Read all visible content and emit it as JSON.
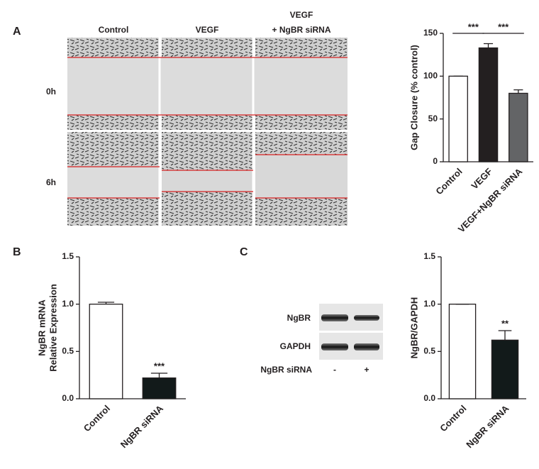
{
  "panels": {
    "a": {
      "label": "A",
      "columns": [
        "Control",
        "VEGF",
        "VEGF",
        "+ NgBR siRNA"
      ],
      "rows": [
        "0h",
        "6h"
      ]
    },
    "b": {
      "label": "B"
    },
    "c": {
      "label": "C",
      "blot_rows": [
        "NgBR",
        "GAPDH"
      ],
      "treatment": "NgBR siRNA",
      "lanes": [
        "-",
        "+"
      ]
    }
  },
  "chart_data": [
    {
      "type": "bar",
      "ylabel": "Gap Closure (% control)",
      "categories": [
        "Control",
        "VEGF",
        "VEGF+NgBR siRNA"
      ],
      "values": [
        100,
        133,
        80
      ],
      "errors": [
        0,
        5,
        4
      ],
      "colors": [
        "#ffffff",
        "#231f20",
        "#636466"
      ],
      "ylim": [
        0,
        150
      ],
      "yticks": [
        0,
        50,
        100,
        150
      ],
      "comparisons": [
        "***",
        "***"
      ]
    },
    {
      "type": "bar",
      "ylabel": [
        "NgBR mRNA",
        "Relative Expression"
      ],
      "categories": [
        "Control",
        "NgBR siRNA"
      ],
      "values": [
        1.0,
        0.22
      ],
      "errors": [
        0.02,
        0.05
      ],
      "colors": [
        "#ffffff",
        "#121a1a"
      ],
      "ylim": [
        0,
        1.5
      ],
      "yticks": [
        {
          "value": 0,
          "label": "0.0"
        },
        {
          "value": 0.5,
          "label": "0.5"
        },
        {
          "value": 1,
          "label": "1.0"
        },
        {
          "value": 1.5,
          "label": "1.5"
        }
      ],
      "annotation": "***"
    },
    {
      "type": "bar",
      "ylabel": "NgBR/GAPDH",
      "categories": [
        "Control",
        "NgBR siRNA"
      ],
      "values": [
        1.0,
        0.62
      ],
      "errors": [
        0,
        0.1
      ],
      "colors": [
        "#ffffff",
        "#121a1a"
      ],
      "ylim": [
        0,
        1.5
      ],
      "yticks": [
        {
          "value": 0,
          "label": "0.0"
        },
        {
          "value": 0.5,
          "label": "0.5"
        },
        {
          "value": 1,
          "label": "1.0"
        },
        {
          "value": 1.5,
          "label": "1.5"
        }
      ],
      "annotation": "**"
    }
  ]
}
